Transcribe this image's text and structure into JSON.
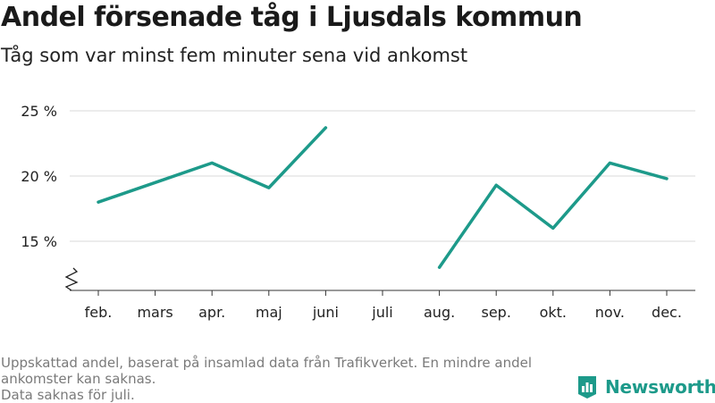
{
  "header": {
    "title": "Andel försenade tåg i Ljusdals kommun",
    "subtitle": "Tåg som var minst fem minuter sena vid ankomst"
  },
  "footnote": {
    "line1": "Uppskattad andel, baserat på insamlad data från Trafikverket. En mindre andel ankomster kan saknas.",
    "line2": "Data saknas för juli."
  },
  "brand": {
    "name": "Newsworthy",
    "color": "#1d9a8a"
  },
  "chart_data": {
    "type": "line",
    "categories": [
      "feb.",
      "mars",
      "apr.",
      "maj",
      "juni",
      "juli",
      "aug.",
      "sep.",
      "okt.",
      "nov.",
      "dec."
    ],
    "series": [
      {
        "values": [
          18.0,
          19.5,
          21.0,
          19.1,
          23.7,
          null,
          13.0,
          19.3,
          16.0,
          21.0,
          19.8
        ]
      }
    ],
    "y_ticks": [
      15,
      20,
      25
    ],
    "y_tick_labels": [
      "15 %",
      "20 %",
      "25 %"
    ],
    "ylim": [
      11.2,
      25
    ],
    "axis_break": true,
    "grid": true,
    "line_color": "#1d9a8a"
  }
}
